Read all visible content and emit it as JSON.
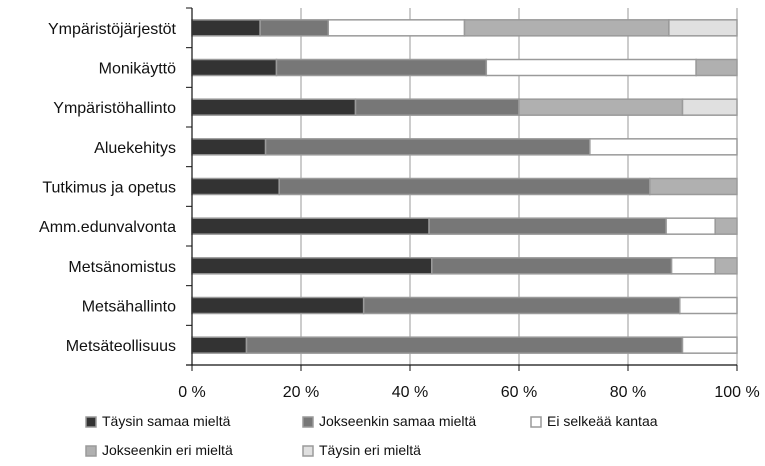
{
  "chart_data": {
    "type": "bar",
    "orientation": "horizontal",
    "stacked": true,
    "percent": true,
    "categories": [
      "Ympäristöjärjestöt",
      "Monikäyttö",
      "Ympäristöhallinto",
      "Aluekehitys",
      "Tutkimus ja opetus",
      "Amm.edunvalvonta",
      "Metsänomistus",
      "Metsähallinto",
      "Metsäteollisuus"
    ],
    "series": [
      {
        "name": "Täysin samaa mieltä",
        "color": "#333333",
        "values": [
          12.5,
          15.5,
          30,
          13.5,
          16,
          43.5,
          44,
          31.5,
          10
        ]
      },
      {
        "name": "Jokseenkin samaa mieltä",
        "color": "#777777",
        "values": [
          12.5,
          38.5,
          30,
          59.5,
          68,
          43.5,
          44,
          58,
          80
        ]
      },
      {
        "name": "Ei selkeää kantaa",
        "color": "#ffffff",
        "values": [
          25,
          38.5,
          0,
          27,
          0,
          9,
          8,
          10.5,
          10
        ]
      },
      {
        "name": "Jokseenkin eri mieltä",
        "color": "#b0b0b0",
        "values": [
          37.5,
          7.5,
          30,
          0,
          16,
          4,
          4,
          0,
          0
        ]
      },
      {
        "name": "Täysin eri mieltä",
        "color": "#e0e0e0",
        "values": [
          12.5,
          0,
          10,
          0,
          0,
          0,
          0,
          0,
          0
        ]
      }
    ],
    "xlim": [
      0,
      100
    ],
    "xticks": [
      "0 %",
      "20 %",
      "40 %",
      "60 %",
      "80 %",
      "100 %"
    ],
    "grid": true,
    "legend_position": "bottom"
  }
}
